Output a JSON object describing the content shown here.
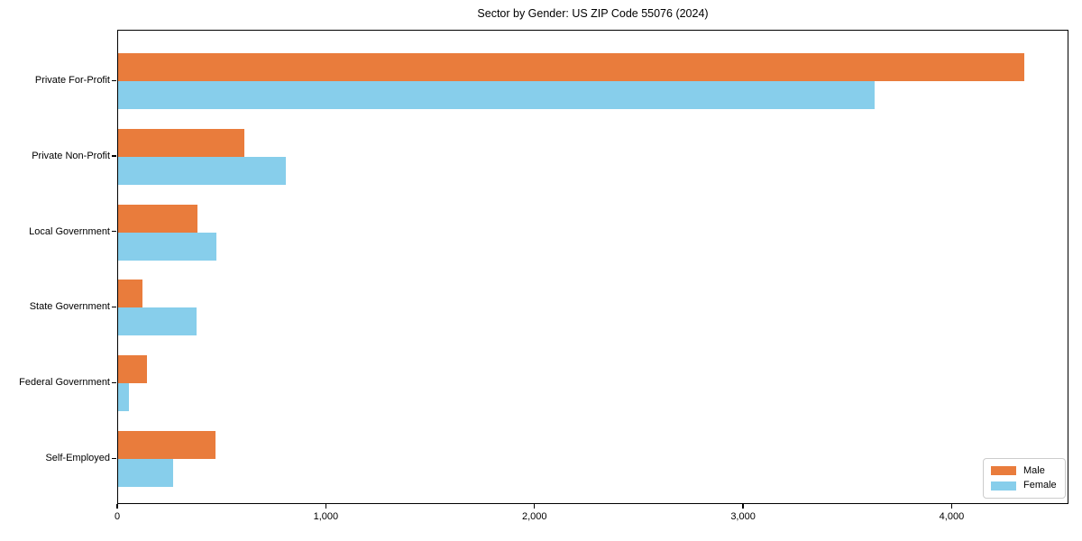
{
  "title": "Sector by Gender: US ZIP Code 55076 (2024)",
  "chart_data": {
    "type": "bar",
    "orientation": "horizontal",
    "title": "Sector by Gender: US ZIP Code 55076 (2024)",
    "categories": [
      "Private For-Profit",
      "Private Non-Profit",
      "Local Government",
      "State Government",
      "Federal Government",
      "Self-Employed"
    ],
    "series": [
      {
        "name": "Male",
        "color": "#e97c3c",
        "values": [
          4345,
          605,
          380,
          115,
          140,
          465
        ]
      },
      {
        "name": "Female",
        "color": "#87ceeb",
        "values": [
          3625,
          805,
          470,
          375,
          50,
          265
        ]
      }
    ],
    "xlabel": "",
    "ylabel": "",
    "xlim": [
      0,
      4560
    ],
    "xticks": {
      "values": [
        0,
        1000,
        2000,
        3000,
        4000
      ],
      "labels": [
        "0",
        "1,000",
        "2,000",
        "3,000",
        "4,000"
      ]
    },
    "grid": false,
    "legend": {
      "position": "lower right"
    }
  }
}
